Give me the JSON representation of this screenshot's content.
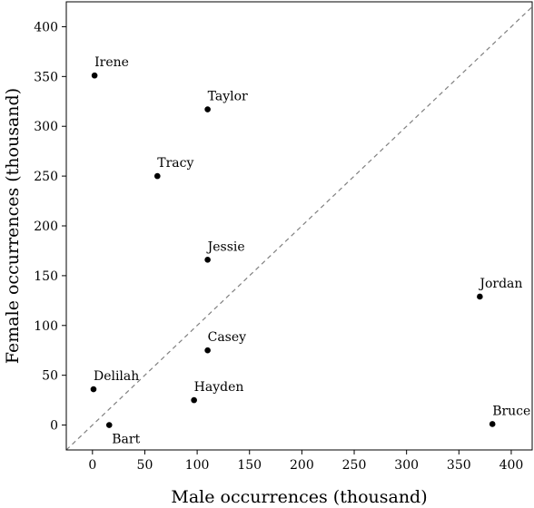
{
  "chart_data": {
    "type": "scatter",
    "xlabel": "Male occurrences (thousand)",
    "ylabel": "Female occurrences (thousand)",
    "xlim": [
      -25,
      420
    ],
    "ylim": [
      -25,
      425
    ],
    "x_ticks": [
      0,
      50,
      100,
      150,
      200,
      250,
      300,
      350,
      400
    ],
    "y_ticks": [
      0,
      50,
      100,
      150,
      200,
      250,
      300,
      350,
      400
    ],
    "grid": false,
    "reference_line": "y = x (dashed)",
    "points": [
      {
        "label": "Irene",
        "x": 2,
        "y": 351
      },
      {
        "label": "Taylor",
        "x": 110,
        "y": 317
      },
      {
        "label": "Tracy",
        "x": 62,
        "y": 250
      },
      {
        "label": "Jessie",
        "x": 110,
        "y": 166
      },
      {
        "label": "Jordan",
        "x": 370,
        "y": 129
      },
      {
        "label": "Casey",
        "x": 110,
        "y": 75
      },
      {
        "label": "Delilah",
        "x": 1,
        "y": 36
      },
      {
        "label": "Hayden",
        "x": 97,
        "y": 25
      },
      {
        "label": "Bart",
        "x": 16,
        "y": 0
      },
      {
        "label": "Bruce",
        "x": 382,
        "y": 1
      }
    ],
    "colors": {
      "points": "#000000",
      "reference_line": "#808080",
      "frame": "#000000"
    }
  }
}
